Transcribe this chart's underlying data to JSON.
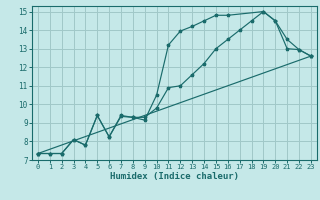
{
  "xlabel": "Humidex (Indice chaleur)",
  "bg_color": "#c5e8e8",
  "grid_color": "#a0c8c8",
  "line_color": "#1a6b6b",
  "xlim": [
    -0.5,
    23.5
  ],
  "ylim": [
    7,
    15.3
  ],
  "xticks": [
    0,
    1,
    2,
    3,
    4,
    5,
    6,
    7,
    8,
    9,
    10,
    11,
    12,
    13,
    14,
    15,
    16,
    17,
    18,
    19,
    20,
    21,
    22,
    23
  ],
  "yticks": [
    7,
    8,
    9,
    10,
    11,
    12,
    13,
    14,
    15
  ],
  "line1_x": [
    0,
    1,
    2,
    3,
    4,
    5,
    6,
    7,
    8,
    9,
    10,
    11,
    12,
    13,
    14,
    15,
    16,
    19,
    20,
    21,
    22,
    23
  ],
  "line1_y": [
    7.35,
    7.35,
    7.35,
    8.1,
    7.8,
    9.4,
    8.25,
    9.4,
    9.3,
    9.15,
    10.5,
    13.2,
    13.95,
    14.2,
    14.5,
    14.8,
    14.8,
    15.0,
    14.5,
    13.0,
    12.95,
    12.6
  ],
  "line2_x": [
    0,
    1,
    2,
    3,
    4,
    5,
    6,
    7,
    8,
    9,
    10,
    11,
    12,
    13,
    14,
    15,
    16,
    17,
    18,
    19,
    20,
    21,
    22,
    23
  ],
  "line2_y": [
    7.35,
    7.35,
    7.35,
    8.1,
    7.8,
    9.4,
    8.25,
    9.35,
    9.3,
    9.3,
    9.8,
    10.9,
    11.0,
    11.6,
    12.2,
    13.0,
    13.5,
    14.0,
    14.5,
    15.0,
    14.5,
    13.5,
    12.95,
    12.6
  ],
  "line3_x": [
    0,
    23
  ],
  "line3_y": [
    7.35,
    12.6
  ]
}
